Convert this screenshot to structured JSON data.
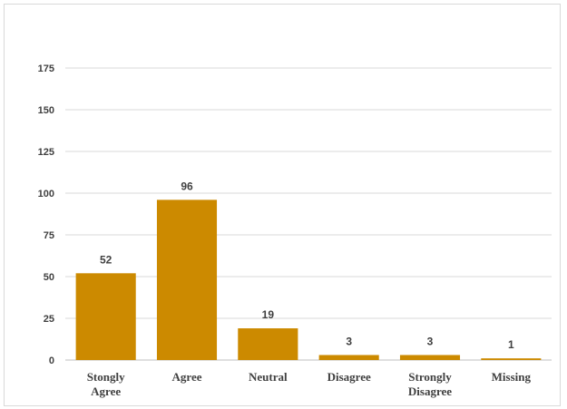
{
  "chart_data": {
    "type": "bar",
    "title": "",
    "xlabel": "",
    "ylabel": "",
    "categories": [
      "Stongly Agree",
      "Agree",
      "Neutral",
      "Disagree",
      "Strongly Disagree",
      "Missing"
    ],
    "category_lines": [
      [
        "Stongly",
        "Agree"
      ],
      [
        "Agree"
      ],
      [
        "Neutral"
      ],
      [
        "Disagree"
      ],
      [
        "Strongly",
        "Disagree"
      ],
      [
        "Missing"
      ]
    ],
    "values": [
      52,
      96,
      19,
      3,
      3,
      1
    ],
    "data_labels": [
      "52",
      "96",
      "19",
      "3",
      "3",
      "1"
    ],
    "ylim": [
      0,
      175
    ],
    "yticks": [
      0,
      25,
      50,
      75,
      100,
      125,
      150,
      175
    ],
    "ytick_labels": [
      "0",
      "25",
      "50",
      "75",
      "100",
      "125",
      "150",
      "175"
    ],
    "grid": true,
    "legend": "none",
    "bar_color": "#CC8A00"
  }
}
